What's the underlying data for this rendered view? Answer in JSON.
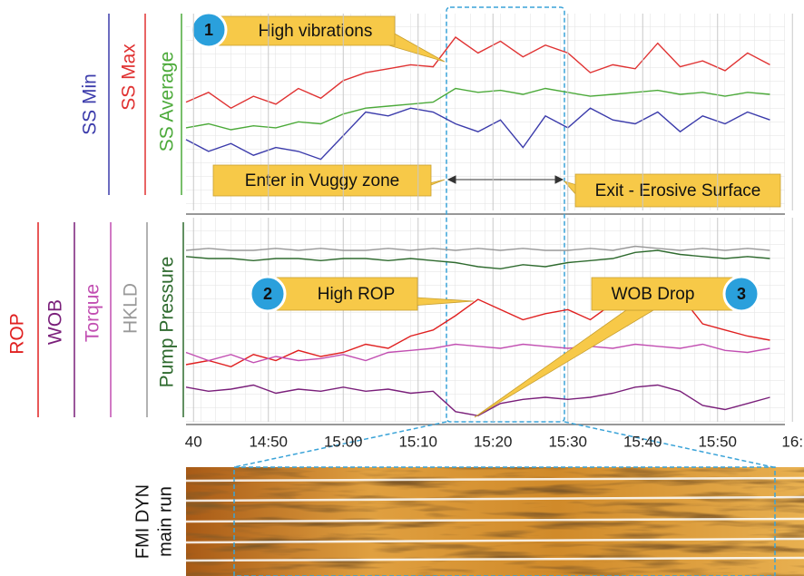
{
  "chart_data": [
    {
      "type": "line",
      "x": [
        "14:39",
        "14:42",
        "14:45",
        "14:48",
        "14:51",
        "14:54",
        "14:57",
        "15:00",
        "15:03",
        "15:06",
        "15:09",
        "15:12",
        "15:15",
        "15:18",
        "15:21",
        "15:24",
        "15:27",
        "15:30",
        "15:33",
        "15:36",
        "15:39",
        "15:42",
        "15:45",
        "15:48",
        "15:51",
        "15:54",
        "15:57"
      ],
      "xlim": [
        "14:39",
        "15:59"
      ],
      "ylim": [
        0,
        100
      ],
      "grid": true,
      "series": [
        {
          "name": "SS Min",
          "color": "#3b3bab",
          "values": [
            36,
            30,
            34,
            28,
            32,
            30,
            26,
            38,
            50,
            48,
            52,
            50,
            44,
            40,
            46,
            32,
            48,
            42,
            52,
            46,
            44,
            50,
            40,
            48,
            44,
            50,
            46
          ]
        },
        {
          "name": "SS Max",
          "color": "#e03232",
          "values": [
            55,
            60,
            52,
            58,
            54,
            62,
            57,
            66,
            70,
            72,
            74,
            73,
            88,
            80,
            86,
            78,
            84,
            80,
            70,
            74,
            72,
            85,
            73,
            76,
            71,
            80,
            74
          ]
        },
        {
          "name": "SS Average",
          "color": "#4caa3a",
          "values": [
            42,
            44,
            41,
            43,
            42,
            45,
            44,
            49,
            52,
            53,
            54,
            55,
            62,
            60,
            61,
            59,
            62,
            60,
            58,
            59,
            60,
            61,
            59,
            60,
            58,
            60,
            59
          ]
        }
      ],
      "annotations": [
        {
          "badge": "1",
          "text": "High vibrations"
        },
        {
          "text": "Enter in Vuggy zone"
        },
        {
          "text": "Exit - Erosive Surface"
        }
      ]
    },
    {
      "type": "line",
      "x": [
        "14:39",
        "14:42",
        "14:45",
        "14:48",
        "14:51",
        "14:54",
        "14:57",
        "15:00",
        "15:03",
        "15:06",
        "15:09",
        "15:12",
        "15:15",
        "15:18",
        "15:21",
        "15:24",
        "15:27",
        "15:30",
        "15:33",
        "15:36",
        "15:39",
        "15:42",
        "15:45",
        "15:48",
        "15:51",
        "15:54",
        "15:57"
      ],
      "xlim": [
        "14:39",
        "15:59"
      ],
      "ylim": [
        0,
        100
      ],
      "grid": true,
      "xticks": [
        {
          "value": "14:40",
          "label": "40"
        },
        "14:50",
        "15:00",
        "15:10",
        "15:20",
        "15:30",
        "15:40",
        "15:50",
        {
          "value": "16:00",
          "label": "16:"
        }
      ],
      "series": [
        {
          "name": "ROP",
          "color": "#e02020",
          "values": [
            28,
            30,
            27,
            33,
            30,
            35,
            32,
            34,
            38,
            36,
            42,
            45,
            52,
            60,
            55,
            50,
            53,
            55,
            50,
            58,
            64,
            56,
            62,
            48,
            45,
            42,
            40
          ]
        },
        {
          "name": "WOB",
          "color": "#7a1f7a",
          "values": [
            17,
            15,
            16,
            18,
            14,
            16,
            15,
            17,
            15,
            16,
            14,
            15,
            5,
            3,
            9,
            11,
            12,
            11,
            12,
            14,
            17,
            18,
            15,
            8,
            6,
            9,
            12
          ]
        },
        {
          "name": "Torque",
          "color": "#c24fb2",
          "values": [
            34,
            30,
            33,
            29,
            32,
            30,
            31,
            33,
            30,
            34,
            35,
            36,
            38,
            37,
            36,
            38,
            37,
            36,
            37,
            36,
            38,
            37,
            36,
            38,
            35,
            34,
            36
          ]
        },
        {
          "name": "HKLD",
          "color": "#999999",
          "values": [
            84,
            85,
            84,
            84,
            85,
            84,
            85,
            84,
            84,
            85,
            84,
            85,
            84,
            85,
            84,
            85,
            84,
            84,
            85,
            84,
            86,
            85,
            84,
            85,
            84,
            85,
            84
          ]
        },
        {
          "name": "Pump Pressure",
          "color": "#2f6b2f",
          "values": [
            81,
            80,
            80,
            79,
            80,
            80,
            79,
            80,
            80,
            79,
            80,
            79,
            78,
            76,
            75,
            77,
            76,
            78,
            79,
            80,
            83,
            84,
            82,
            81,
            80,
            81,
            80
          ]
        }
      ],
      "annotations": [
        {
          "badge": "2",
          "text": "High ROP"
        },
        {
          "badge": "3",
          "text": "WOB Drop"
        }
      ]
    }
  ],
  "image": {
    "label_lines": [
      "FMI DYN",
      "main run"
    ]
  }
}
